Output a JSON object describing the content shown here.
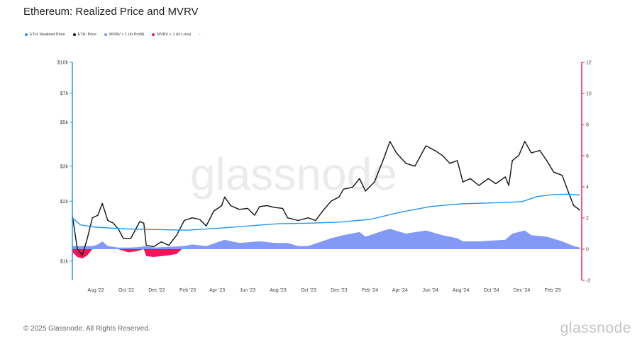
{
  "title": "Ethereum: Realized Price and MVRV",
  "legend": [
    {
      "label": "ETH: Realized Price",
      "color": "#2196f3"
    },
    {
      "label": "ETH: Price",
      "color": "#111111"
    },
    {
      "label": "MVRV > 1 (In Profit)",
      "color": "#7b95f5"
    },
    {
      "label": "MVRV < 1 (In Loss)",
      "color": "#f0145a"
    }
  ],
  "legend_extra": "-",
  "footer": "© 2025 Glassnode. All Rights Reserved.",
  "brand": "glassnode",
  "watermark": "glassnode",
  "chart_data": {
    "type": "line",
    "title": "Ethereum: Realized Price and MVRV",
    "colors": {
      "realized": "#2196f3",
      "price": "#111111",
      "profit": "#7b95f5",
      "loss": "#f0145a",
      "left_axis": "#2196f3",
      "right_axis": "#e91e63"
    },
    "x_ticks": [
      "Aug '22",
      "Oct '22",
      "Dec '22",
      "Feb '23",
      "Apr '23",
      "Jun '23",
      "Aug '23",
      "Oct '23",
      "Dec '23",
      "Feb '24",
      "Apr '24",
      "Jun '24",
      "Aug '24",
      "Oct '24",
      "Dec '24",
      "Feb '25"
    ],
    "x_tick_dates": [
      "2022-08-01",
      "2022-10-01",
      "2022-12-01",
      "2023-02-01",
      "2023-04-01",
      "2023-06-01",
      "2023-08-01",
      "2023-10-01",
      "2023-12-01",
      "2024-02-01",
      "2024-04-01",
      "2024-06-01",
      "2024-08-01",
      "2024-10-01",
      "2024-12-01",
      "2025-02-01"
    ],
    "x_range": [
      "2022-06-15",
      "2025-03-31"
    ],
    "y_left": {
      "scale": "log",
      "range": [
        800,
        10000
      ],
      "ticks": [
        1000,
        2000,
        3000,
        5000,
        7000,
        10000
      ],
      "tick_labels": [
        "$1k",
        "$2k",
        "$3k",
        "$5k",
        "$7k",
        "$10k"
      ]
    },
    "y_right": {
      "scale": "linear",
      "range": [
        -2,
        12
      ],
      "ticks": [
        -2,
        0,
        2,
        4,
        6,
        8,
        10,
        12
      ],
      "tick_labels": [
        "-2",
        "0",
        "2",
        "4",
        "6",
        "8",
        "10",
        "12"
      ]
    },
    "grid": false,
    "legend_position": "top-left",
    "series": [
      {
        "name": "ETH: Price",
        "axis": "left",
        "x": [
          "2022-06-15",
          "2022-06-25",
          "2022-07-05",
          "2022-07-15",
          "2022-07-25",
          "2022-08-05",
          "2022-08-14",
          "2022-08-25",
          "2022-09-05",
          "2022-09-15",
          "2022-09-25",
          "2022-10-10",
          "2022-10-28",
          "2022-11-05",
          "2022-11-10",
          "2022-11-25",
          "2022-12-10",
          "2022-12-25",
          "2023-01-10",
          "2023-01-25",
          "2023-02-10",
          "2023-02-25",
          "2023-03-10",
          "2023-03-25",
          "2023-04-10",
          "2023-04-16",
          "2023-04-28",
          "2023-05-15",
          "2023-06-01",
          "2023-06-15",
          "2023-06-25",
          "2023-07-10",
          "2023-07-25",
          "2023-08-10",
          "2023-08-20",
          "2023-09-10",
          "2023-09-30",
          "2023-10-15",
          "2023-11-01",
          "2023-11-15",
          "2023-12-01",
          "2023-12-10",
          "2023-12-28",
          "2024-01-11",
          "2024-01-23",
          "2024-02-10",
          "2024-02-29",
          "2024-03-12",
          "2024-03-25",
          "2024-04-13",
          "2024-05-01",
          "2024-05-23",
          "2024-06-10",
          "2024-06-25",
          "2024-07-10",
          "2024-07-25",
          "2024-08-05",
          "2024-08-20",
          "2024-09-06",
          "2024-09-25",
          "2024-10-10",
          "2024-10-29",
          "2024-11-05",
          "2024-11-12",
          "2024-11-25",
          "2024-12-07",
          "2024-12-20",
          "2025-01-06",
          "2025-01-20",
          "2025-02-03",
          "2025-02-20",
          "2025-03-05",
          "2025-03-15",
          "2025-03-28"
        ],
        "y": [
          1700,
          1150,
          1070,
          1300,
          1650,
          1700,
          1950,
          1600,
          1550,
          1450,
          1300,
          1300,
          1580,
          1550,
          1200,
          1180,
          1250,
          1200,
          1350,
          1600,
          1650,
          1620,
          1500,
          1780,
          1900,
          2100,
          1900,
          1820,
          1840,
          1700,
          1880,
          1900,
          1860,
          1840,
          1650,
          1600,
          1650,
          1600,
          1820,
          2000,
          2100,
          2300,
          2350,
          2600,
          2250,
          2500,
          3300,
          4000,
          3500,
          3100,
          3000,
          3800,
          3600,
          3400,
          3100,
          3200,
          2500,
          2600,
          2400,
          2600,
          2450,
          2650,
          2400,
          3200,
          3400,
          4000,
          3500,
          3600,
          3200,
          2800,
          2700,
          2200,
          1900,
          1800
        ]
      },
      {
        "name": "ETH: Realized Price",
        "axis": "left",
        "x": [
          "2022-06-15",
          "2022-07-01",
          "2022-08-01",
          "2022-10-01",
          "2022-12-01",
          "2023-02-01",
          "2023-04-01",
          "2023-06-01",
          "2023-08-01",
          "2023-10-01",
          "2023-12-01",
          "2024-02-01",
          "2024-04-01",
          "2024-06-01",
          "2024-08-01",
          "2024-10-01",
          "2024-12-01",
          "2025-01-01",
          "2025-02-01",
          "2025-03-01",
          "2025-03-28"
        ],
        "y": [
          1650,
          1520,
          1480,
          1450,
          1440,
          1430,
          1460,
          1500,
          1540,
          1550,
          1570,
          1620,
          1760,
          1880,
          1940,
          1960,
          1990,
          2110,
          2160,
          2170,
          2150
        ]
      },
      {
        "name": "MVRV > 1 (In Profit)",
        "axis": "right",
        "type": "area",
        "x": [
          "2022-06-15",
          "2022-07-25",
          "2022-08-05",
          "2022-08-14",
          "2022-08-25",
          "2022-09-15",
          "2022-10-10",
          "2022-11-01",
          "2022-11-05",
          "2022-11-25",
          "2023-01-25",
          "2023-02-10",
          "2023-03-10",
          "2023-04-16",
          "2023-05-15",
          "2023-06-25",
          "2023-07-25",
          "2023-08-20",
          "2023-09-10",
          "2023-09-30",
          "2023-11-15",
          "2023-12-10",
          "2024-01-11",
          "2024-01-23",
          "2024-02-29",
          "2024-03-12",
          "2024-04-13",
          "2024-05-23",
          "2024-06-25",
          "2024-07-25",
          "2024-08-05",
          "2024-09-06",
          "2024-10-29",
          "2024-11-12",
          "2024-12-07",
          "2024-12-20",
          "2025-01-20",
          "2025-02-20",
          "2025-03-15",
          "2025-03-28"
        ],
        "y": [
          0.2,
          0.2,
          0.3,
          0.5,
          0.2,
          0.1,
          0.1,
          0.15,
          0.2,
          0.1,
          0.2,
          0.3,
          0.2,
          0.6,
          0.4,
          0.5,
          0.4,
          0.4,
          0.2,
          0.2,
          0.7,
          0.9,
          1.1,
          0.8,
          1.2,
          1.3,
          1.0,
          1.2,
          0.9,
          0.7,
          0.5,
          0.5,
          0.6,
          1.0,
          1.2,
          0.9,
          0.8,
          0.5,
          0.2,
          0.1
        ]
      },
      {
        "name": "MVRV < 1 (In Loss)",
        "axis": "right",
        "type": "area",
        "x": [
          "2022-06-15",
          "2022-06-25",
          "2022-07-05",
          "2022-07-15",
          "2022-07-25",
          "2022-09-15",
          "2022-10-05",
          "2022-10-20",
          "2022-11-05",
          "2022-11-10",
          "2022-11-25",
          "2022-12-25",
          "2023-01-10",
          "2023-01-20"
        ],
        "y": [
          -0.2,
          -0.5,
          -0.6,
          -0.4,
          0,
          0,
          -0.2,
          -0.15,
          0,
          -0.45,
          -0.5,
          -0.4,
          -0.3,
          0
        ]
      }
    ]
  }
}
